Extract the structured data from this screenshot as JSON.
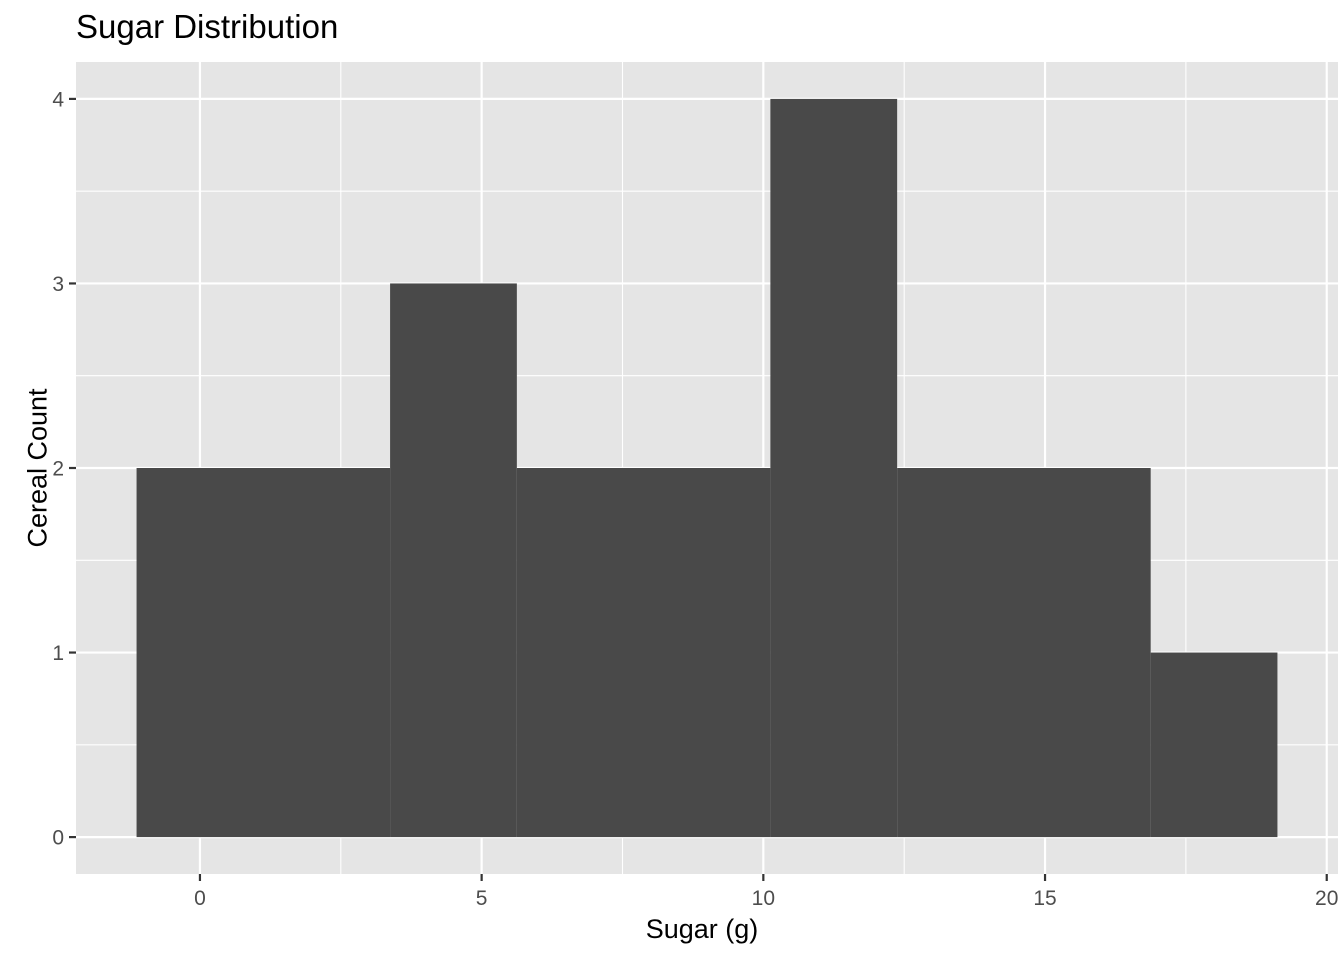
{
  "chart_data": {
    "type": "bar",
    "subtype": "histogram",
    "title": "Sugar Distribution",
    "xlabel": "Sugar (g)",
    "ylabel": "Cereal Count",
    "bins": [
      {
        "x0": -1.125,
        "x1": 3.375,
        "count": 2
      },
      {
        "x0": 3.375,
        "x1": 5.625,
        "count": 3
      },
      {
        "x0": 5.625,
        "x1": 10.125,
        "count": 2
      },
      {
        "x0": 10.125,
        "x1": 12.375,
        "count": 4
      },
      {
        "x0": 12.375,
        "x1": 16.875,
        "count": 2
      },
      {
        "x0": 16.875,
        "x1": 19.125,
        "count": 1
      }
    ],
    "xlim": [
      -2.2,
      20.2
    ],
    "ylim": [
      -0.2,
      4.2
    ],
    "x_ticks": [
      0,
      5,
      10,
      15,
      20
    ],
    "x_tick_labels": [
      "0",
      "5",
      "10",
      "15",
      "20"
    ],
    "y_ticks": [
      0,
      1,
      2,
      3,
      4
    ],
    "y_tick_labels": [
      "0",
      "1",
      "2",
      "3",
      "4"
    ],
    "x_minor_ticks": [
      2.5,
      7.5,
      12.5,
      17.5
    ],
    "y_minor_ticks": [
      0.5,
      1.5,
      2.5,
      3.5
    ],
    "grid": true,
    "colors": {
      "bar": "#494949",
      "panel": "#e5e5e5",
      "grid": "#ffffff",
      "tick_text": "#4d4d4d",
      "tick_mark": "#333333"
    }
  }
}
